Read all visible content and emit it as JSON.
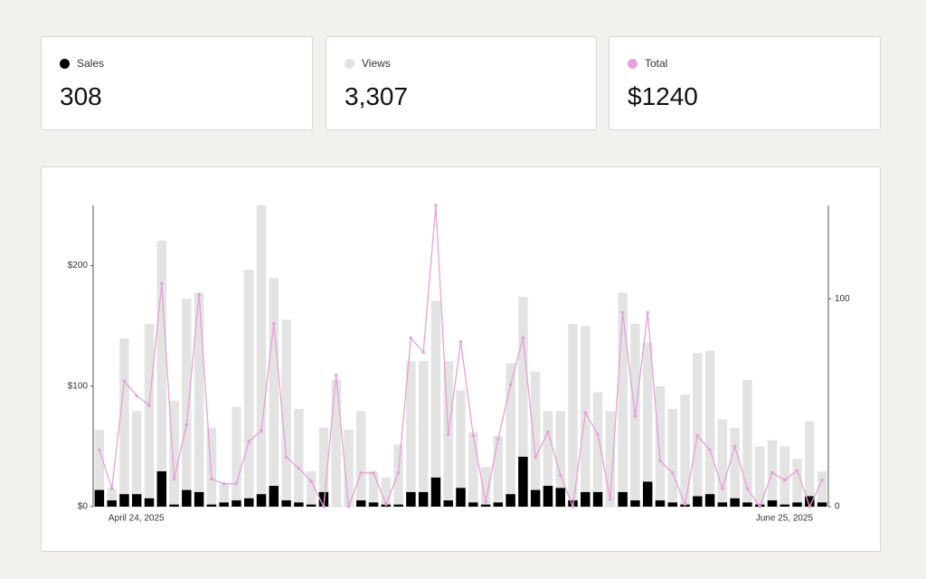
{
  "summary": [
    "308",
    "3,307",
    "$1240"
  ],
  "chart_data": {
    "type": "combo",
    "categories": [
      "April 24, 2025",
      null,
      null,
      null,
      null,
      null,
      null,
      null,
      null,
      null,
      null,
      null,
      null,
      null,
      null,
      null,
      null,
      null,
      null,
      null,
      null,
      null,
      null,
      null,
      null,
      null,
      null,
      null,
      null,
      null,
      null,
      null,
      null,
      null,
      null,
      null,
      null,
      null,
      null,
      null,
      null,
      null,
      null,
      null,
      null,
      null,
      null,
      null,
      null,
      null,
      null,
      null,
      null,
      null,
      null,
      null,
      null,
      null,
      "June 25, 2025"
    ],
    "series": [
      {
        "name": "Sales",
        "color": "#000000",
        "mark": "bar",
        "axis": "y2",
        "values": [
          8,
          3,
          6,
          6,
          4,
          17,
          1,
          8,
          7,
          1,
          2,
          3,
          4,
          6,
          10,
          3,
          2,
          1,
          7,
          0,
          0,
          3,
          2,
          1,
          1,
          7,
          7,
          14,
          3,
          9,
          2,
          1,
          2,
          6,
          24,
          8,
          10,
          9,
          3,
          7,
          7,
          0,
          7,
          3,
          12,
          3,
          2,
          1,
          5,
          6,
          2,
          4,
          2,
          1,
          3,
          1,
          2,
          5,
          2
        ]
      },
      {
        "name": "Views",
        "color": "#e3e3e3",
        "mark": "bar",
        "axis": "y2",
        "values": [
          37,
          9,
          81,
          46,
          88,
          128,
          51,
          100,
          103,
          38,
          11,
          48,
          114,
          145,
          110,
          90,
          47,
          17,
          38,
          61,
          37,
          46,
          17,
          14,
          30,
          70,
          70,
          99,
          70,
          56,
          36,
          19,
          34,
          69,
          101,
          65,
          46,
          46,
          88,
          87,
          55,
          46,
          103,
          88,
          79,
          58,
          47,
          54,
          74,
          75,
          42,
          38,
          61,
          29,
          32,
          29,
          23,
          41,
          17
        ]
      },
      {
        "name": "Total",
        "color": "#e8a0d8",
        "mark": "line",
        "axis": "y",
        "values": [
          47,
          15,
          104,
          92,
          84,
          185,
          23,
          68,
          176,
          23,
          19,
          19,
          54,
          63,
          152,
          41,
          32,
          21,
          0,
          109,
          0,
          28,
          28,
          2,
          28,
          140,
          128,
          250,
          60,
          137,
          59,
          4,
          56,
          101,
          140,
          41,
          62,
          26,
          0,
          78,
          60,
          6,
          161,
          75,
          161,
          38,
          28,
          2,
          59,
          47,
          15,
          50,
          15,
          0,
          28,
          22,
          30,
          0,
          22
        ]
      }
    ],
    "ylim": [
      0,
      250
    ],
    "yticks": [
      {
        "value": 0,
        "label": "$0"
      },
      {
        "value": 100,
        "label": "$100"
      },
      {
        "value": 200,
        "label": "$200"
      }
    ],
    "y2lim": [
      0,
      145
    ],
    "y2ticks": [
      0,
      100
    ]
  }
}
